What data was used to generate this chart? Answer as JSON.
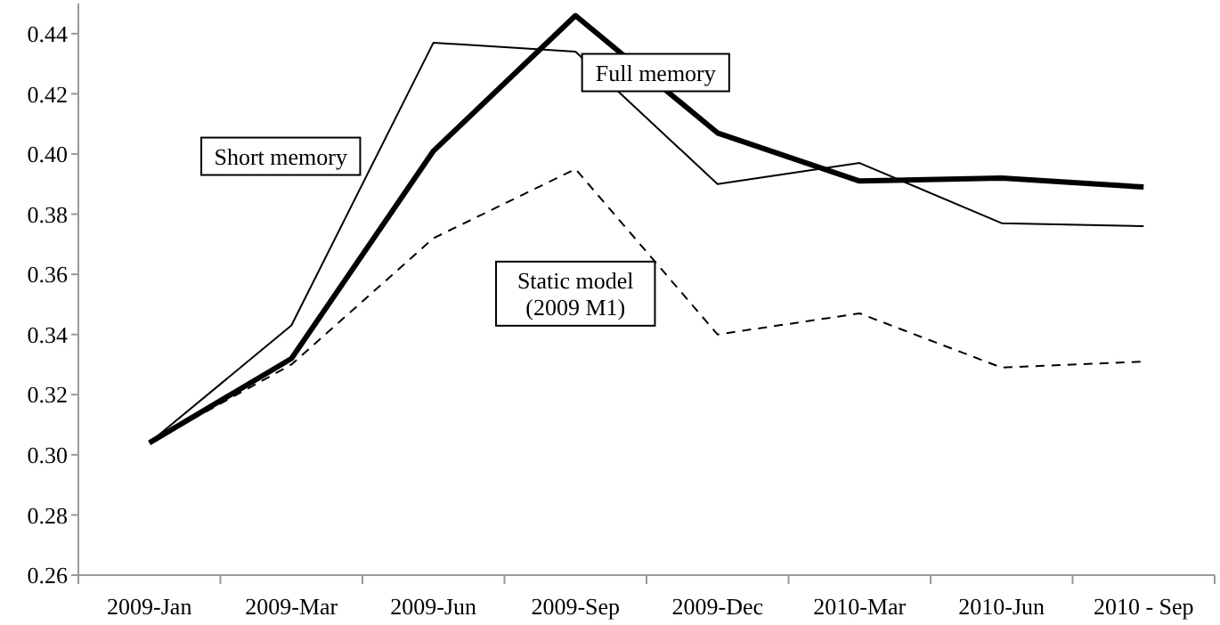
{
  "chart_data": {
    "type": "line",
    "categories": [
      "2009-Jan",
      "2009-Mar",
      "2009-Jun",
      "2009-Sep",
      "2009-Dec",
      "2010-Mar",
      "2010-Jun",
      "2010 - Sep"
    ],
    "series": [
      {
        "name": "Full memory",
        "color": "#000000",
        "line_style": "solid",
        "values": [
          0.304,
          0.332,
          0.401,
          0.446,
          0.407,
          0.391,
          0.392,
          0.389
        ]
      },
      {
        "name": "Short memory",
        "color": "#000000",
        "line_style": "solid",
        "values": [
          0.304,
          0.343,
          0.437,
          0.434,
          0.39,
          0.397,
          0.377,
          0.376
        ]
      },
      {
        "name": "Static model\n(2009 M1)",
        "color": "#000000",
        "line_style": "dashed",
        "values": [
          0.304,
          0.33,
          0.372,
          0.395,
          0.34,
          0.347,
          0.329,
          0.331
        ]
      }
    ],
    "ylim": [
      0.26,
      0.45
    ],
    "yticks": [
      {
        "value": 0.26,
        "label": "0.26"
      },
      {
        "value": 0.28,
        "label": "0.28"
      },
      {
        "value": 0.3,
        "label": "0.30"
      },
      {
        "value": 0.32,
        "label": "0.32"
      },
      {
        "value": 0.34,
        "label": "0.34"
      },
      {
        "value": 0.36,
        "label": "0.36"
      },
      {
        "value": 0.38,
        "label": "0.38"
      },
      {
        "value": 0.4,
        "label": "0.40"
      },
      {
        "value": 0.42,
        "label": "0.42"
      },
      {
        "value": 0.44,
        "label": "0.44"
      }
    ],
    "grid": false,
    "legend": false,
    "marker": "none"
  }
}
